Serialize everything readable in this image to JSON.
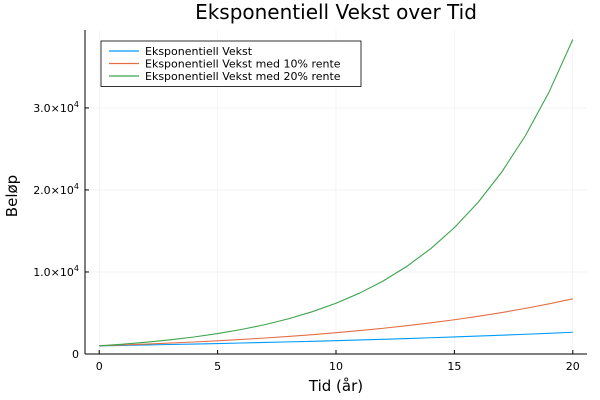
{
  "chart_data": {
    "type": "line",
    "title": "Eksponentiell Vekst over Tid",
    "xlabel": "Tid (år)",
    "ylabel": "Beløp",
    "xlim": [
      -0.6,
      20.6
    ],
    "ylim": [
      0,
      39500
    ],
    "xticks": [
      0,
      5,
      10,
      15,
      20
    ],
    "xtick_labels": [
      "0",
      "5",
      "10",
      "15",
      "20"
    ],
    "yticks": [
      0,
      10000,
      20000,
      30000
    ],
    "ytick_labels": [
      {
        "base": "0",
        "exp": ""
      },
      {
        "base": "1.0×10",
        "exp": "4"
      },
      {
        "base": "2.0×10",
        "exp": "4"
      },
      {
        "base": "3.0×10",
        "exp": "4"
      }
    ],
    "grid": true,
    "legend_position": "top-left",
    "x": [
      0,
      1,
      2,
      3,
      4,
      5,
      6,
      7,
      8,
      9,
      10,
      11,
      12,
      13,
      14,
      15,
      16,
      17,
      18,
      19,
      20
    ],
    "series": [
      {
        "name": "Eksponentiell Vekst",
        "color": "#009AFA",
        "values": [
          1000,
          1050,
          1103,
          1158,
          1216,
          1276,
          1340,
          1407,
          1477,
          1551,
          1629,
          1710,
          1796,
          1886,
          1980,
          2079,
          2183,
          2292,
          2407,
          2527,
          2653
        ]
      },
      {
        "name": "Eksponentiell Vekst med 10% rente",
        "color": "#E26F46",
        "values": [
          1000,
          1100,
          1210,
          1331,
          1464,
          1611,
          1772,
          1949,
          2144,
          2358,
          2594,
          2853,
          3138,
          3452,
          3797,
          4177,
          4595,
          5054,
          5560,
          6116,
          6727
        ]
      },
      {
        "name": "Eksponentiell Vekst med 20% rente",
        "color": "#3DA44D",
        "values": [
          1000,
          1200,
          1440,
          1728,
          2074,
          2488,
          2986,
          3583,
          4300,
          5160,
          6192,
          7430,
          8916,
          10699,
          12839,
          15407,
          18488,
          22186,
          26623,
          31948,
          38338
        ]
      }
    ]
  }
}
